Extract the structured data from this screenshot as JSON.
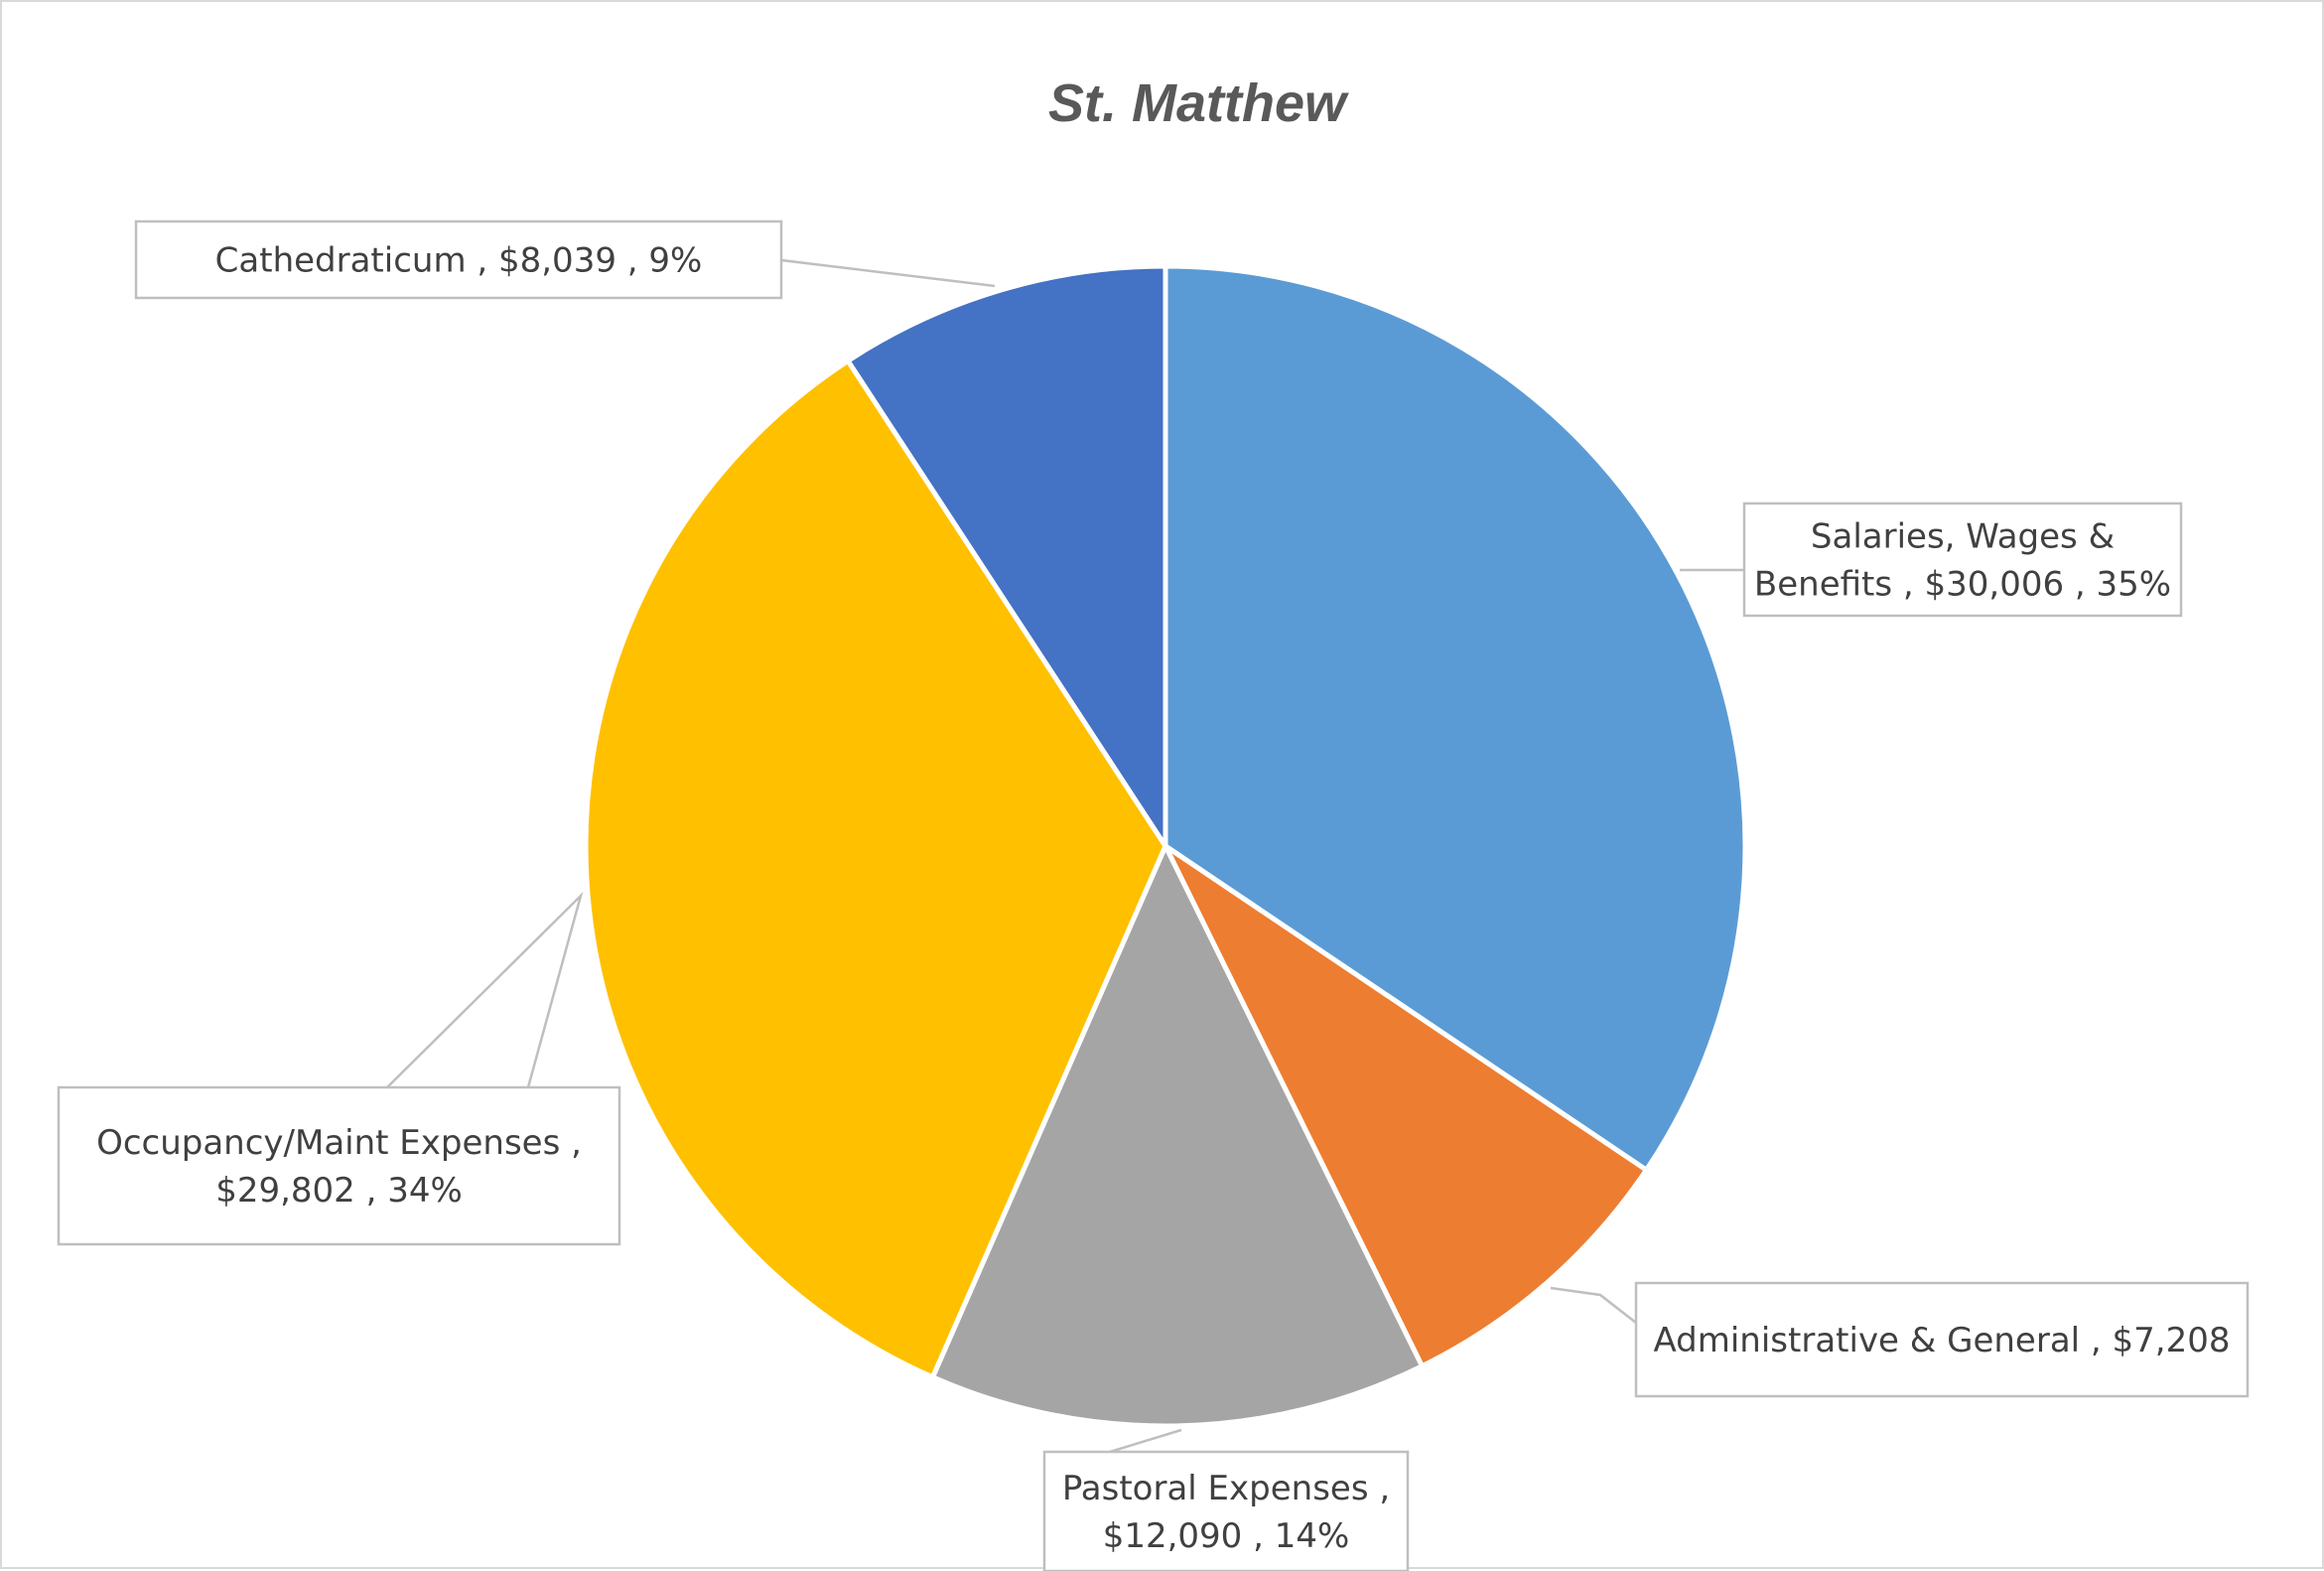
{
  "chart_data": {
    "type": "pie",
    "title": "St. Matthew",
    "slices": [
      {
        "name": "Salaries, Wages & Benefits",
        "value": 30006,
        "percent": "35%",
        "color": "#5B9BD5",
        "label_lines": [
          "Salaries, Wages &",
          "Benefits ,  $30,006 , 35%"
        ]
      },
      {
        "name": "Administrative & General",
        "value": 7208,
        "percent": "8%",
        "color": "#ED7D31",
        "label_lines": [
          "Administrative & General ,  $7,208"
        ]
      },
      {
        "name": "Pastoral Expenses",
        "value": 12090,
        "percent": "14%",
        "color": "#A5A5A5",
        "label_lines": [
          "Pastoral Expenses ,",
          "$12,090 , 14%"
        ]
      },
      {
        "name": "Occupancy/Maint Expenses",
        "value": 29802,
        "percent": "34%",
        "color": "#FFC000",
        "label_lines": [
          "Occupancy/Maint Expenses ,",
          "$29,802 , 34%"
        ]
      },
      {
        "name": "Cathedraticum",
        "value": 8039,
        "percent": "9%",
        "color": "#4472C4",
        "label_lines": [
          "Cathedraticum ,  $8,039 , 9%"
        ]
      }
    ],
    "start_angle": "12 o'clock",
    "direction": "clockwise",
    "legend": "none",
    "data_labels": "callouts"
  }
}
